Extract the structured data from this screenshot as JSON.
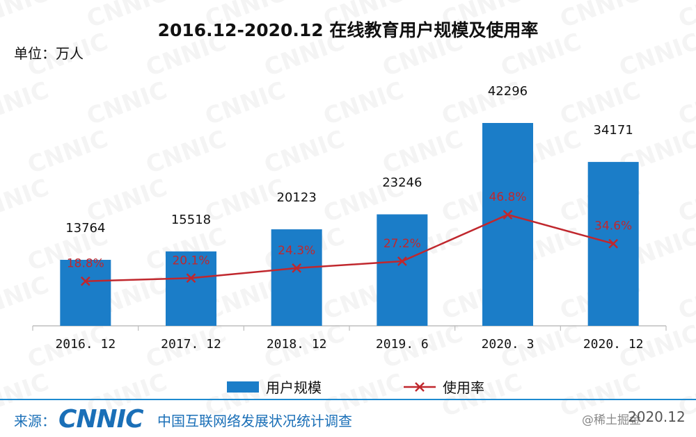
{
  "header": {
    "title": "2016.12-2020.12 在线教育用户规模及使用率",
    "unit": "单位：万人"
  },
  "footer": {
    "source_label": "来源：",
    "brand": "CNNIC",
    "org": "中国互联网络发展状况统计调查",
    "credit": "@稀土掘金",
    "date": "2020.12"
  },
  "watermark_text": "CNNIC",
  "colors": {
    "bar": "#1b7dc8",
    "line": "#c0272d",
    "rate_label": "#c0272d",
    "footer": "#1a6fb7"
  },
  "chart_data": {
    "type": "bar",
    "categories": [
      "2016. 12",
      "2017. 12",
      "2018. 12",
      "2019. 6",
      "2020. 3",
      "2020. 12"
    ],
    "series": [
      {
        "name": "用户规模",
        "type": "bar",
        "values": [
          13764,
          15518,
          20123,
          23246,
          42296,
          34171
        ]
      },
      {
        "name": "使用率",
        "type": "line",
        "values": [
          18.8,
          20.1,
          24.3,
          27.2,
          46.8,
          34.6
        ],
        "labels": [
          "18.8%",
          "20.1%",
          "24.3%",
          "27.2%",
          "46.8%",
          "34.6%"
        ]
      }
    ],
    "title": "2016.12-2020.12 在线教育用户规模及使用率",
    "ylabel": "单位：万人",
    "ylim": [
      0,
      50000
    ],
    "rate_ylim": [
      0,
      90
    ],
    "grid": false,
    "legend": "bottom-center"
  }
}
